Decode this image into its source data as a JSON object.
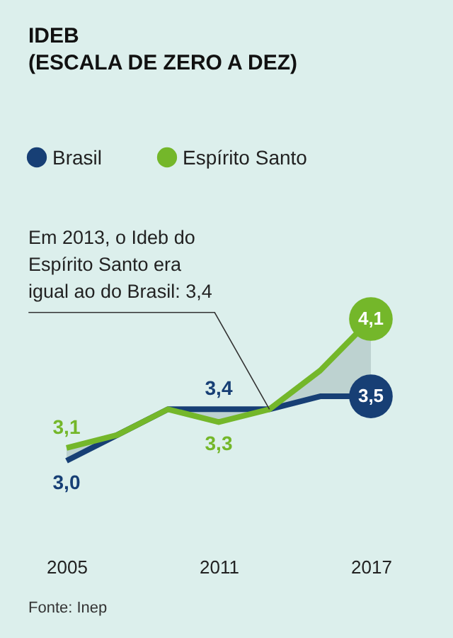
{
  "chart_data": {
    "type": "line",
    "title": "IDEB",
    "subtitle": "(ESCALA DE ZERO A DEZ)",
    "x": [
      2005,
      2007,
      2009,
      2011,
      2013,
      2015,
      2017
    ],
    "series": [
      {
        "name": "Brasil",
        "color": "#173f75",
        "values": [
          3.0,
          3.2,
          3.4,
          3.4,
          3.4,
          3.5,
          3.5
        ],
        "value_labels": [
          "3,0",
          null,
          null,
          "3,4",
          null,
          null,
          "3,5"
        ]
      },
      {
        "name": "Espírito Santo",
        "color": "#74b72a",
        "values": [
          3.1,
          3.2,
          3.4,
          3.3,
          3.4,
          3.7,
          4.1
        ],
        "value_labels": [
          "3,1",
          null,
          null,
          "3,3",
          null,
          null,
          "4,1"
        ],
        "lower": [
          3.0,
          3.2,
          3.4,
          3.3,
          3.4,
          3.5,
          3.5
        ],
        "upper": [
          3.1,
          3.2,
          3.4,
          3.4,
          3.4,
          3.7,
          4.1
        ]
      }
    ],
    "xlim": [
      2005,
      2017
    ],
    "xticks": [
      2005,
      2011,
      2017
    ],
    "tick_labels": "x",
    "grid": false,
    "legend": "top left",
    "marker": "none",
    "line_style": "solid",
    "annotations": [
      {
        "text": "Em 2013, o Ideb do\nEspírito Santo era\nigual ao do Brasil: 3,4",
        "x": 2013,
        "y": 3.4
      },
      "Fonte: Inep"
    ]
  }
}
